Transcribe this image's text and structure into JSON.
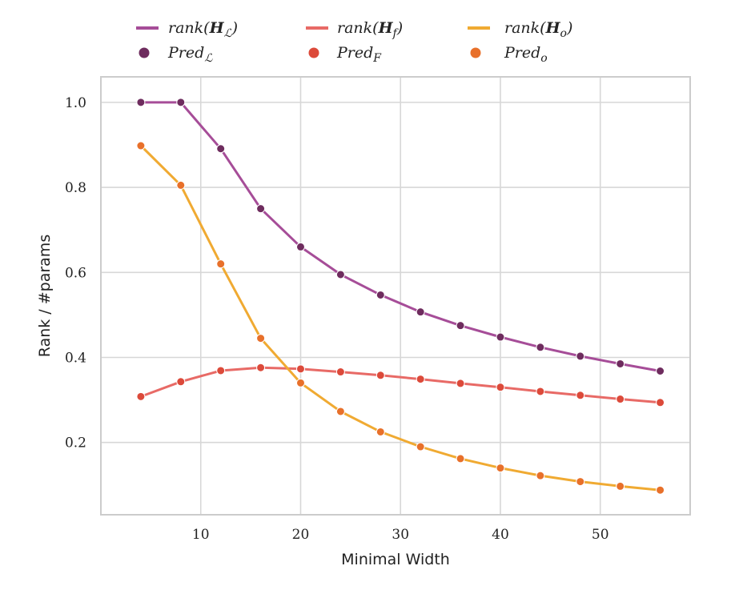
{
  "chart_data": {
    "type": "line",
    "xlabel": "Minimal Width",
    "ylabel": "Rank / #params",
    "xlim": [
      0,
      59
    ],
    "ylim": [
      0.03,
      1.06
    ],
    "xticks": [
      10,
      20,
      30,
      40,
      50
    ],
    "yticks": [
      0.2,
      0.4,
      0.6,
      0.8,
      1.0
    ],
    "x_tick_labels": [
      "10",
      "20",
      "30",
      "40",
      "50"
    ],
    "y_tick_labels": [
      "0.2",
      "0.4",
      "0.6",
      "0.8",
      "1.0"
    ],
    "grid": true,
    "legend_position": "top",
    "x": [
      4,
      8,
      12,
      16,
      20,
      24,
      28,
      32,
      36,
      40,
      44,
      48,
      52,
      56
    ],
    "series": [
      {
        "line_label": "rank(H_L)",
        "marker_label": "Pred_L",
        "line_color": "#a64d98",
        "marker_color": "#6e2c5e",
        "values": [
          1.0,
          1.0,
          0.891,
          0.75,
          0.66,
          0.595,
          0.547,
          0.507,
          0.475,
          0.448,
          0.424,
          0.403,
          0.385,
          0.368
        ]
      },
      {
        "line_label": "rank(H_f)",
        "marker_label": "Pred_F",
        "line_color": "#e86a66",
        "marker_color": "#dc4a3a",
        "values": [
          0.308,
          0.343,
          0.369,
          0.376,
          0.373,
          0.366,
          0.358,
          0.349,
          0.339,
          0.33,
          0.32,
          0.311,
          0.302,
          0.294
        ]
      },
      {
        "line_label": "rank(H_o)",
        "marker_label": "Pred_o",
        "line_color": "#f0aa32",
        "marker_color": "#e8702a",
        "values": [
          0.898,
          0.805,
          0.62,
          0.445,
          0.34,
          0.273,
          0.225,
          0.19,
          0.162,
          0.14,
          0.122,
          0.108,
          0.097,
          0.088
        ]
      }
    ]
  }
}
